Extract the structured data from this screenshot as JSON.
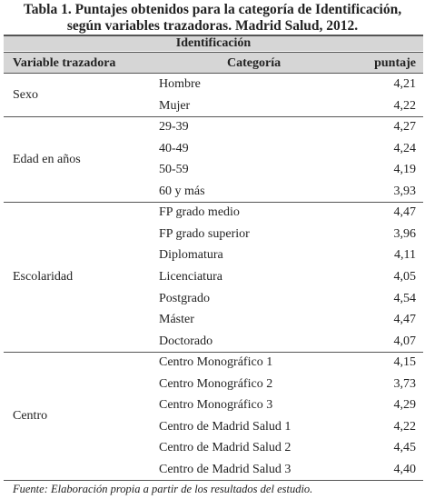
{
  "header": {
    "title_line1": "Tabla 1. Puntajes obtenidos para la categoría de Identificación,",
    "title_line2": "según variables trazadoras. Madrid Salud, 2012."
  },
  "table": {
    "section": "Identificación",
    "columns": [
      "Variable trazadora",
      "Categoría",
      "puntaje"
    ],
    "groups": [
      {
        "variable": "Sexo",
        "rows": [
          [
            "Hombre",
            "4,21"
          ],
          [
            "Mujer",
            "4,22"
          ]
        ]
      },
      {
        "variable": "Edad en años",
        "rows": [
          [
            "29-39",
            "4,27"
          ],
          [
            "40-49",
            "4,24"
          ],
          [
            "50-59",
            "4,19"
          ],
          [
            "60 y más",
            "3,93"
          ]
        ]
      },
      {
        "variable": "Escolaridad",
        "rows": [
          [
            "FP grado medio",
            "4,47"
          ],
          [
            "FP grado superior",
            "3,96"
          ],
          [
            "Diplomatura",
            "4,11"
          ],
          [
            "Licenciatura",
            "4,05"
          ],
          [
            "Postgrado",
            "4,54"
          ],
          [
            "Máster",
            "4,47"
          ],
          [
            "Doctorado",
            "4,07"
          ]
        ]
      },
      {
        "variable": "Centro",
        "rows": [
          [
            "Centro Monográfico 1",
            "4,15"
          ],
          [
            "Centro Monográfico 2",
            "3,73"
          ],
          [
            "Centro Monográfico 3",
            "4,29"
          ],
          [
            "Centro de Madrid Salud 1",
            "4,22"
          ],
          [
            "Centro de Madrid Salud 2",
            "4,45"
          ],
          [
            "Centro de Madrid Salud 3",
            "4,40"
          ]
        ]
      }
    ]
  },
  "footer": {
    "source": "Fuente: Elaboración propia a partir de los resultados del estudio."
  }
}
